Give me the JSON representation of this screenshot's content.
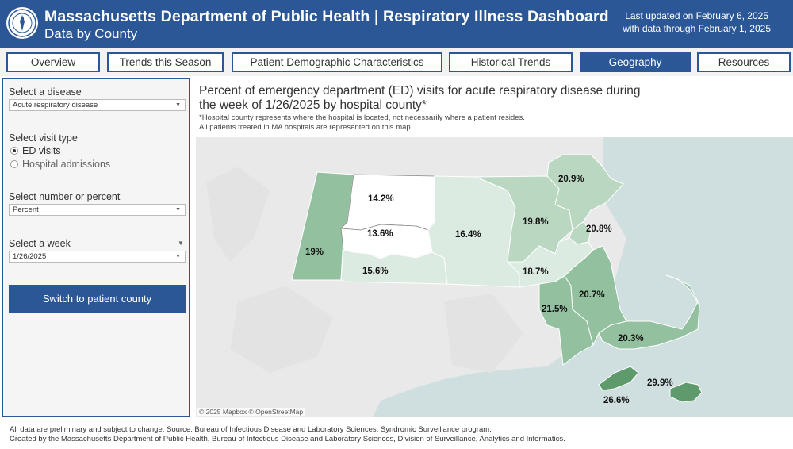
{
  "header": {
    "title": "Massachusetts Department of Public Health | Respiratory Illness Dashboard",
    "subtitle": "Data by County",
    "updated_line1": "Last updated on February 6, 2025",
    "updated_line2": "with data through February 1, 2025",
    "seal_icon": "state-seal-icon"
  },
  "tabs": [
    {
      "label": "Overview",
      "active": false
    },
    {
      "label": "Trends this Season",
      "active": false
    },
    {
      "label": "Patient Demographic Characteristics",
      "active": false
    },
    {
      "label": "Historical Trends",
      "active": false
    },
    {
      "label": "Geography",
      "active": true
    },
    {
      "label": "Resources",
      "active": false
    }
  ],
  "sidebar": {
    "disease_label": "Select a disease",
    "disease_value": "Acute respiratory disease",
    "visit_label": "Select visit type",
    "visit_options": [
      {
        "label": "ED visits",
        "selected": true
      },
      {
        "label": "Hospital admissions",
        "selected": false
      }
    ],
    "number_label": "Select number or percent",
    "number_value": "Percent",
    "week_label": "Select a week",
    "week_value": "1/26/2025",
    "switch_button": "Switch to patient county"
  },
  "map": {
    "title": "Percent of emergency department (ED) visits for acute respiratory disease during the week of 1/26/2025 by hospital county*",
    "note1": "*Hospital county represents where the hospital is located, not necessarily where a patient resides.",
    "note2": "All patients treated in MA hospitals are represented on this map.",
    "attribution": "© 2025 Mapbox  © OpenStreetMap",
    "colors": {
      "low": "#dcebe1",
      "mid": "#b9d7c1",
      "high": "#93c19f",
      "top": "#5f9a6c",
      "none": "#ffffff",
      "land": "#e9e9e9",
      "water": "#cfdedf"
    },
    "counties": [
      {
        "name": "Berkshire",
        "label": "19%",
        "value": 19.0
      },
      {
        "name": "Franklin",
        "label": "14.2%",
        "value": 14.2
      },
      {
        "name": "Hampshire",
        "label": "13.6%",
        "value": 13.6
      },
      {
        "name": "Hampden",
        "label": "15.6%",
        "value": 15.6
      },
      {
        "name": "Worcester",
        "label": "16.4%",
        "value": 16.4
      },
      {
        "name": "Middlesex",
        "label": "19.8%",
        "value": 19.8
      },
      {
        "name": "Essex",
        "label": "20.9%",
        "value": 20.9
      },
      {
        "name": "Suffolk",
        "label": "20.8%",
        "value": 20.8
      },
      {
        "name": "Norfolk",
        "label": "18.7%",
        "value": 18.7
      },
      {
        "name": "Bristol",
        "label": "21.5%",
        "value": 21.5
      },
      {
        "name": "Plymouth",
        "label": "20.7%",
        "value": 20.7
      },
      {
        "name": "Barnstable",
        "label": "20.3%",
        "value": 20.3
      },
      {
        "name": "Dukes",
        "label": "26.6%",
        "value": 26.6
      },
      {
        "name": "Nantucket",
        "label": "29.9%",
        "value": 29.9
      }
    ]
  },
  "footer": {
    "line1": "All data are preliminary and subject to change. Source: Bureau of Infectious Disease and Laboratory Sciences, Syndromic Surveillance program.",
    "line2": "Created by the Massachusetts Department of Public Health, Bureau of Infectious Disease and Laboratory Sciences, Division of Surveillance, Analytics and Informatics."
  }
}
